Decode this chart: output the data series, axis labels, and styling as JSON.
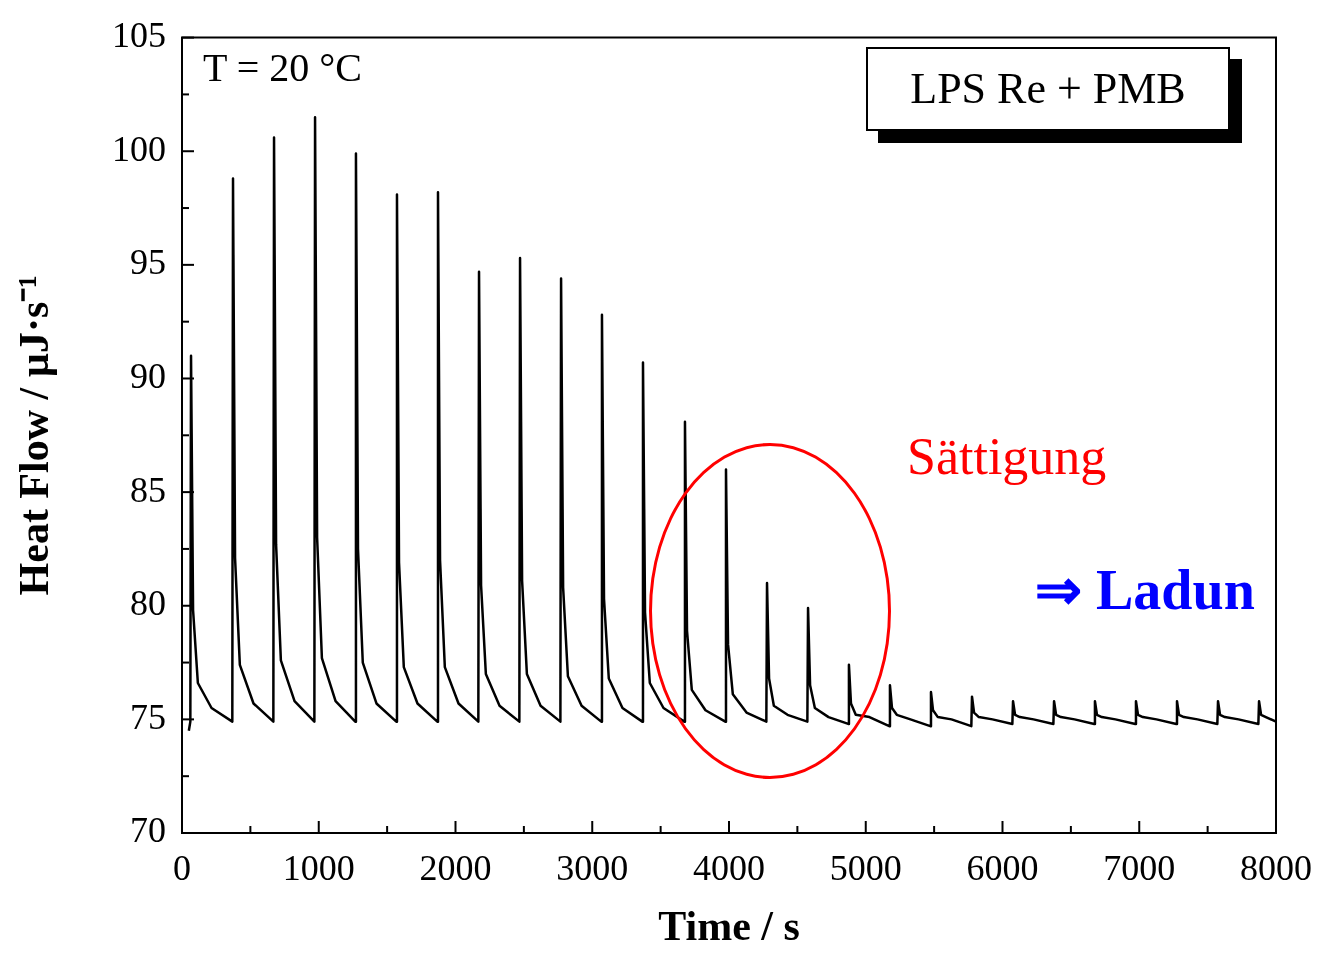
{
  "chart_data": {
    "type": "line",
    "xlabel": "Time / s",
    "ylabel": "Heat Flow / µJ·s⁻¹",
    "x": [
      50,
      61,
      66,
      81,
      116,
      216,
      368,
      373,
      388,
      423,
      523,
      668,
      673,
      688,
      723,
      823,
      968,
      973,
      988,
      1023,
      1123,
      1267,
      1272,
      1287,
      1322,
      1422,
      1567,
      1572,
      1587,
      1622,
      1722,
      1867,
      1872,
      1887,
      1922,
      2022,
      2167,
      2172,
      2187,
      2222,
      2322,
      2467,
      2472,
      2487,
      2522,
      2622,
      2767,
      2772,
      2787,
      2822,
      2922,
      3066,
      3071,
      3086,
      3121,
      3221,
      3366,
      3371,
      3386,
      3421,
      3521,
      3673,
      3678,
      3693,
      3728,
      3828,
      3973,
      3978,
      3993,
      4028,
      4128,
      4273,
      4278,
      4293,
      4328,
      4428,
      4573,
      4578,
      4593,
      4628,
      4728,
      4872,
      4877,
      4892,
      4927,
      5027,
      5172,
      5177,
      5192,
      5227,
      5327,
      5472,
      5477,
      5492,
      5527,
      5627,
      5772,
      5777,
      5792,
      5827,
      5927,
      6072,
      6077,
      6092,
      6127,
      6227,
      6372,
      6377,
      6392,
      6427,
      6527,
      6671,
      6676,
      6691,
      6726,
      6826,
      6971,
      6976,
      6991,
      7026,
      7126,
      7271,
      7276,
      7291,
      7326,
      7426,
      7571,
      7576,
      7591,
      7626,
      7726,
      7871,
      7876,
      7891,
      7926,
      8000
    ],
    "series": [
      {
        "color": "#000000",
        "values": [
          74.5,
          74.9,
          91.0,
          79.8,
          76.6,
          75.5,
          74.9,
          98.8,
          82.1,
          77.4,
          75.7,
          74.9,
          100.6,
          82.7,
          77.6,
          75.8,
          74.9,
          101.5,
          83.0,
          77.7,
          75.8,
          74.9,
          99.9,
          82.5,
          77.5,
          75.7,
          74.9,
          98.1,
          81.9,
          77.3,
          75.7,
          74.9,
          98.2,
          82.0,
          77.3,
          75.7,
          74.9,
          94.7,
          80.9,
          77.0,
          75.6,
          74.9,
          95.3,
          81.1,
          77.0,
          75.6,
          74.9,
          94.4,
          80.8,
          76.9,
          75.6,
          74.9,
          92.8,
          80.3,
          76.8,
          75.5,
          74.9,
          90.7,
          79.7,
          76.6,
          75.5,
          74.9,
          88.1,
          78.9,
          76.3,
          75.4,
          74.9,
          86.0,
          78.3,
          76.1,
          75.3,
          74.9,
          81.0,
          76.8,
          75.6,
          75.2,
          74.9,
          79.9,
          76.5,
          75.5,
          75.1,
          74.8,
          77.4,
          75.7,
          75.2,
          75.1,
          74.7,
          76.5,
          75.5,
          75.2,
          75.0,
          74.7,
          76.2,
          75.4,
          75.1,
          75.0,
          74.7,
          76.0,
          75.3,
          75.1,
          75.0,
          74.8,
          75.8,
          75.2,
          75.1,
          75.0,
          74.8,
          75.8,
          75.2,
          75.1,
          75.0,
          74.8,
          75.8,
          75.2,
          75.1,
          75.0,
          74.8,
          75.8,
          75.2,
          75.1,
          75.0,
          74.8,
          75.8,
          75.2,
          75.1,
          75.0,
          74.8,
          75.8,
          75.2,
          75.1,
          75.0,
          74.8,
          75.8,
          75.2,
          75.1,
          74.9
        ]
      }
    ],
    "xlim": [
      0,
      8000
    ],
    "ylim": [
      70,
      105
    ],
    "xticks": [
      0,
      {
        "value": 500,
        "label": null
      },
      1000,
      {
        "value": 1500,
        "label": null
      },
      2000,
      {
        "value": 2500,
        "label": null
      },
      3000,
      {
        "value": 3500,
        "label": null
      },
      4000,
      {
        "value": 4500,
        "label": null
      },
      5000,
      {
        "value": 5500,
        "label": null
      },
      6000,
      {
        "value": 6500,
        "label": null
      },
      7000,
      {
        "value": 7500,
        "label": null
      },
      8000
    ],
    "yticks": [
      70,
      {
        "value": 72.5,
        "label": null
      },
      75,
      {
        "value": 77.5,
        "label": null
      },
      80,
      {
        "value": 82.5,
        "label": null
      },
      85,
      {
        "value": 87.5,
        "label": null
      },
      90,
      {
        "value": 92.5,
        "label": null
      },
      95,
      {
        "value": 97.5,
        "label": null
      },
      100,
      {
        "value": 102.5,
        "label": null
      },
      105
    ],
    "annotations": [
      "T = 20 °C",
      "LPS Re + PMB",
      "Sättigung",
      "⇒ Ladun"
    ]
  }
}
